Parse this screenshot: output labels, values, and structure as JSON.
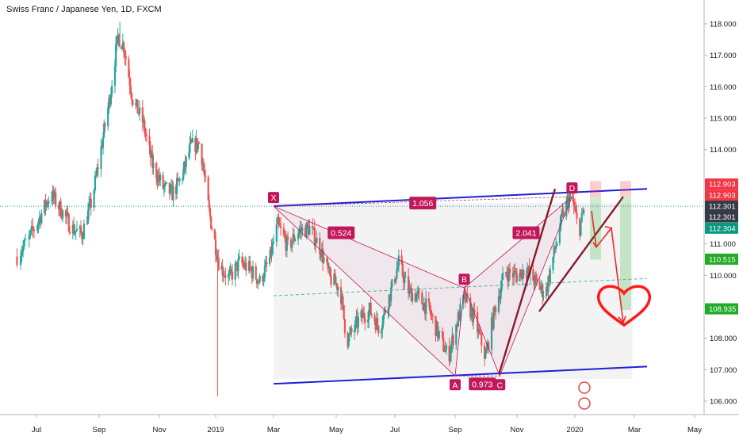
{
  "chart_data": {
    "type": "candlestick",
    "title": "Swiss Franc / Japanese Yen, 1D, FXCM",
    "x_ticks": [
      "Jul",
      "Sep",
      "Nov",
      "2019",
      "Mar",
      "May",
      "Jul",
      "Sep",
      "Nov",
      "2020",
      "Mar",
      "May"
    ],
    "y_ticks": [
      "106.000",
      "107.000",
      "108.000",
      "109.000",
      "110.000",
      "111.000",
      "112.000",
      "113.000",
      "114.000",
      "115.000",
      "116.000",
      "117.000",
      "118.000"
    ],
    "ylim": [
      105.6,
      118.4
    ],
    "price_path": [
      [
        "2018-06-15",
        110.6
      ],
      [
        "2018-06-25",
        111.2
      ],
      [
        "2018-07-05",
        111.9
      ],
      [
        "2018-07-15",
        112.6
      ],
      [
        "2018-07-25",
        112.1
      ],
      [
        "2018-08-05",
        111.5
      ],
      [
        "2018-08-15",
        111.3
      ],
      [
        "2018-08-25",
        112.4
      ],
      [
        "2018-09-05",
        114.4
      ],
      [
        "2018-09-12",
        115.7
      ],
      [
        "2018-09-20",
        117.6
      ],
      [
        "2018-09-26",
        117.3
      ],
      [
        "2018-10-05",
        115.6
      ],
      [
        "2018-10-15",
        114.9
      ],
      [
        "2018-10-25",
        113.5
      ],
      [
        "2018-11-05",
        112.8
      ],
      [
        "2018-11-15",
        112.6
      ],
      [
        "2018-11-25",
        113.1
      ],
      [
        "2018-12-05",
        114.1
      ],
      [
        "2018-12-15",
        114.2
      ],
      [
        "2018-12-25",
        112.0
      ],
      [
        "2019-01-05",
        110.3
      ],
      [
        "2019-01-15",
        109.9
      ],
      [
        "2019-01-25",
        110.4
      ],
      [
        "2019-02-05",
        110.2
      ],
      [
        "2019-02-15",
        109.8
      ],
      [
        "2019-02-25",
        110.5
      ],
      [
        "2019-03-05",
        111.6
      ],
      [
        "2019-03-15",
        110.9
      ],
      [
        "2019-03-25",
        111.4
      ],
      [
        "2019-04-05",
        111.5
      ],
      [
        "2019-04-15",
        110.9
      ],
      [
        "2019-04-25",
        109.9
      ],
      [
        "2019-05-05",
        109.6
      ],
      [
        "2019-05-12",
        107.9
      ],
      [
        "2019-05-25",
        108.6
      ],
      [
        "2019-06-05",
        108.9
      ],
      [
        "2019-06-15",
        108.3
      ],
      [
        "2019-06-25",
        109.3
      ],
      [
        "2019-07-05",
        110.4
      ],
      [
        "2019-07-15",
        109.5
      ],
      [
        "2019-07-25",
        109.3
      ],
      [
        "2019-08-05",
        108.9
      ],
      [
        "2019-08-15",
        108.1
      ],
      [
        "2019-08-25",
        107.4
      ],
      [
        "2019-09-01",
        108.3
      ],
      [
        "2019-09-10",
        109.3
      ],
      [
        "2019-09-20",
        108.6
      ],
      [
        "2019-10-01",
        107.4
      ],
      [
        "2019-10-10",
        108.9
      ],
      [
        "2019-10-20",
        110.1
      ],
      [
        "2019-11-01",
        110.0
      ],
      [
        "2019-11-10",
        110.2
      ],
      [
        "2019-11-20",
        109.8
      ],
      [
        "2019-12-01",
        109.4
      ],
      [
        "2019-12-10",
        110.7
      ],
      [
        "2019-12-20",
        112.0
      ],
      [
        "2019-12-28",
        112.6
      ],
      [
        "2020-01-05",
        111.4
      ],
      [
        "2020-01-12",
        112.3
      ]
    ],
    "harmonic_pattern": {
      "points": [
        {
          "label": "X",
          "date": "2019-03-01",
          "price": 112.2
        },
        {
          "label": "A",
          "date": "2019-09-01",
          "price": 106.8
        },
        {
          "label": "B",
          "date": "2019-09-10",
          "price": 109.6
        },
        {
          "label": "C",
          "date": "2019-10-15",
          "price": 106.8
        },
        {
          "label": "D",
          "date": "2019-12-29",
          "price": 112.5
        }
      ],
      "ratios": [
        "1.056",
        "0.524",
        "2.041",
        "0.973"
      ]
    },
    "price_tags": [
      {
        "label": "112.903",
        "price": 112.903,
        "color": "#f23645"
      },
      {
        "label": "112.903",
        "price": 112.55,
        "color": "#f23645"
      },
      {
        "label": "112.301",
        "price": 112.2,
        "color": "#363a45"
      },
      {
        "label": "112.301",
        "price": 111.86,
        "color": "#363a45"
      },
      {
        "label": "112.304",
        "price": 111.5,
        "color": "#089981"
      },
      {
        "label": "110.515",
        "price": 110.515,
        "color": "#22ab27"
      },
      {
        "label": "108.935",
        "price": 108.935,
        "color": "#22ab27"
      }
    ],
    "grid": false,
    "colors": {
      "up": "#26a69a",
      "down": "#ef5350",
      "channel": "#1f1fd6",
      "pattern": "#c2185b",
      "trend": "#8b1a2b",
      "heart": "#ff1a1a"
    }
  }
}
